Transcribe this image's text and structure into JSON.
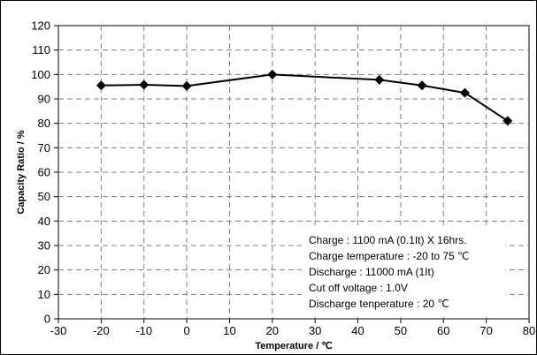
{
  "chart_data": {
    "type": "line",
    "xlabel": "Temperature / ℃",
    "ylabel": "Capacity Ratio / %",
    "xlim": [
      -30,
      80
    ],
    "ylim": [
      0,
      120
    ],
    "xticks": [
      "-30",
      "-20",
      "-10",
      "0",
      "10",
      "20",
      "30",
      "40",
      "50",
      "60",
      "70",
      "80"
    ],
    "yticks": [
      "0",
      "10",
      "20",
      "30",
      "40",
      "50",
      "60",
      "70",
      "80",
      "90",
      "100",
      "110",
      "120"
    ],
    "grid": true,
    "series": [
      {
        "x": [
          -20,
          -10,
          0,
          20,
          45,
          55,
          65,
          75
        ],
        "y": [
          95.5,
          95.8,
          95.3,
          100,
          97.8,
          95.5,
          92.5,
          81
        ],
        "marker": "diamond",
        "color": "#000000"
      }
    ],
    "annotations": [
      "Charge : 1100 mA (0.1It) X 16hrs.",
      "Charge temperature : -20 to 75 ℃",
      "Discharge : 11000 mA (1It)",
      "Cut off voltage : 1.0V",
      "Discharge tenperature : 20 ℃"
    ]
  }
}
